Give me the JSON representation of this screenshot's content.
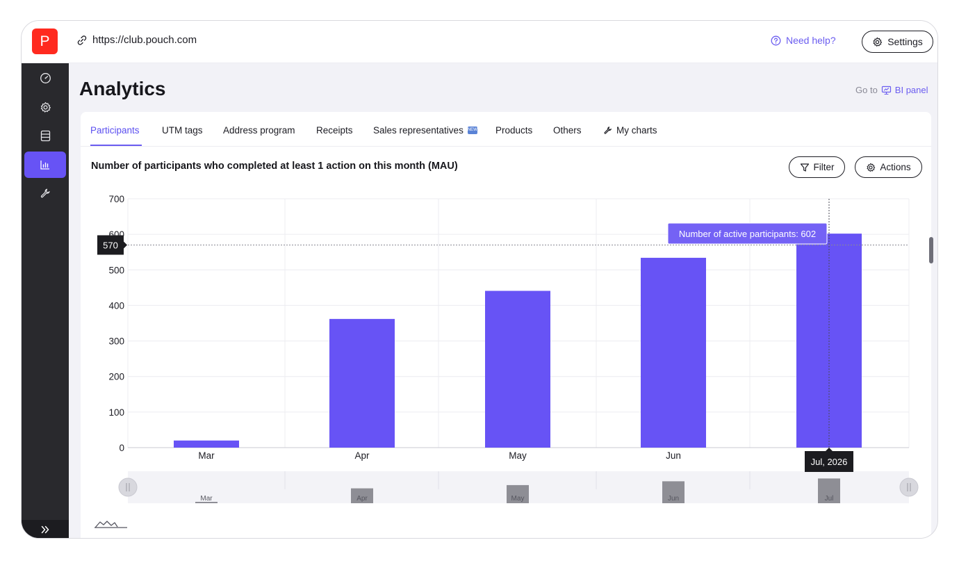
{
  "browser": {
    "logo_letter": "P",
    "url": "https://club.pouch.com"
  },
  "header": {
    "help_label": "Need help?",
    "settings_label": "Settings"
  },
  "sidebar": {
    "items": [
      {
        "icon": "dashboard-gauge-icon",
        "active": false
      },
      {
        "icon": "gear-icon",
        "active": false
      },
      {
        "icon": "database-icon",
        "active": false
      },
      {
        "icon": "bar-chart-icon",
        "active": true
      },
      {
        "icon": "wrench-icon",
        "active": false
      }
    ],
    "expand_icon": "double-chevron-right-icon"
  },
  "page": {
    "title": "Analytics",
    "goto_prefix": "Go to",
    "goto_link": "BI panel"
  },
  "tabs": [
    {
      "label": "Participants",
      "active": true
    },
    {
      "label": "UTM tags",
      "active": false
    },
    {
      "label": "Address program",
      "active": false
    },
    {
      "label": "Receipts",
      "active": false
    },
    {
      "label": "Sales representatives",
      "active": false,
      "badge": "NEW"
    },
    {
      "label": "Products",
      "active": false
    },
    {
      "label": "Others",
      "active": false
    },
    {
      "label": "My charts",
      "active": false,
      "icon": "wrench-icon"
    }
  ],
  "chart_panel": {
    "title": "Number of participants who completed at least 1 action on this month (MAU)",
    "filter_label": "Filter",
    "actions_label": "Actions"
  },
  "chart_data": {
    "type": "bar",
    "categories": [
      "Mar",
      "Apr",
      "May",
      "Jun",
      "Jul"
    ],
    "values": [
      20,
      362,
      441,
      534,
      602
    ],
    "ylim": [
      0,
      700
    ],
    "yticks": [
      0,
      100,
      200,
      300,
      400,
      500,
      600,
      700
    ],
    "grid": true,
    "bar_color": "#6753f5",
    "crosshair_value": 570,
    "crosshair_label": "570",
    "tooltip": "Number of active participants: 602",
    "x_tooltip": "Jul, 2026",
    "navigator_labels": [
      "Mar",
      "Apr",
      "May",
      "Jun",
      "Jul"
    ]
  }
}
